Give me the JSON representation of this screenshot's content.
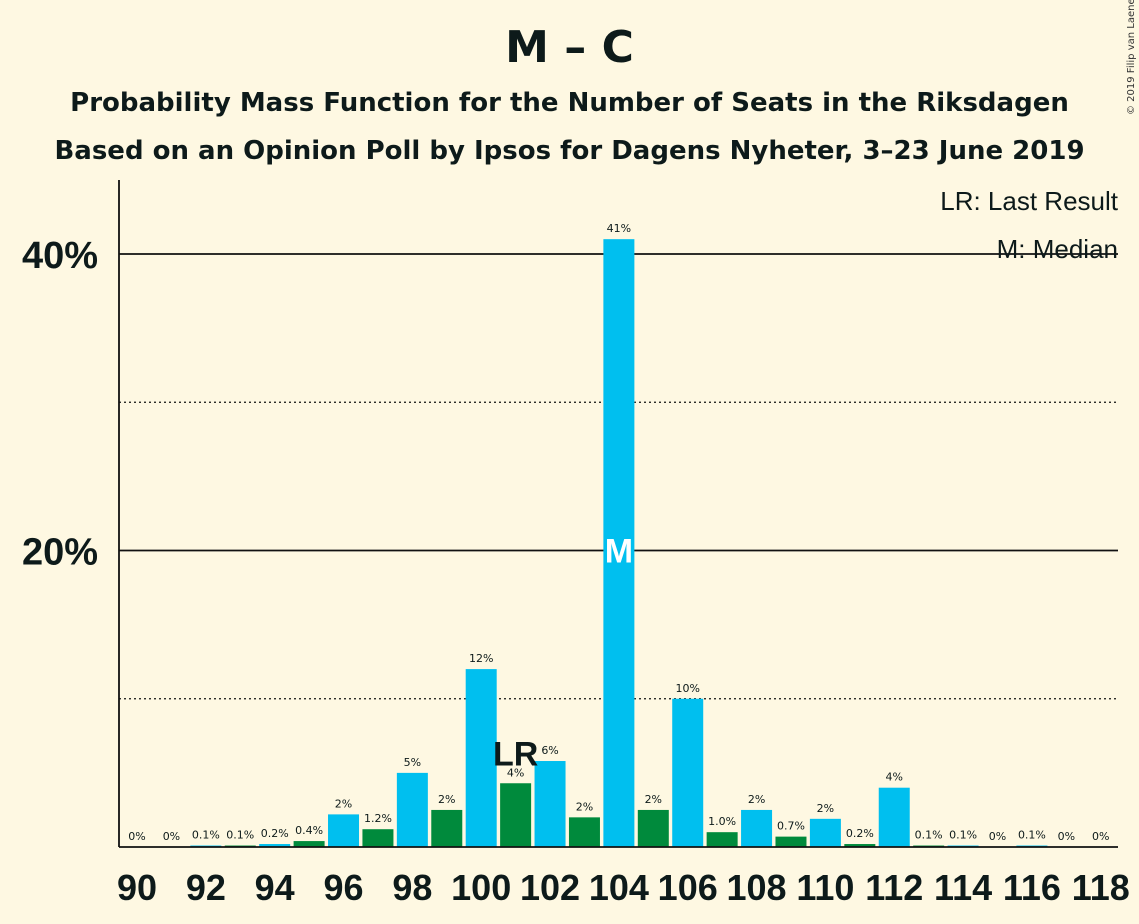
{
  "title": "M – C",
  "subtitle_1": "Probability Mass Function for the Number of Seats in the Riksdagen",
  "subtitle_2": "Based on an Opinion Poll by Ipsos for Dagens Nyheter, 3–23 June 2019",
  "copyright": "© 2019 Filip van Laenen",
  "legend": {
    "last_result": "LR: Last Result",
    "median": "M: Median"
  },
  "colors": {
    "background": "#fef8e2",
    "blue": "#00bfef",
    "green": "#008a3c"
  },
  "chart_data": {
    "type": "bar",
    "x": [
      90,
      91,
      92,
      93,
      94,
      95,
      96,
      97,
      98,
      99,
      100,
      101,
      102,
      103,
      104,
      105,
      106,
      107,
      108,
      109,
      110,
      111,
      112,
      113,
      114,
      115,
      116,
      117,
      118
    ],
    "values": [
      0,
      0,
      0.1,
      0.1,
      0.2,
      0.4,
      2.2,
      1.2,
      5,
      2.5,
      12,
      4.3,
      5.8,
      2,
      41,
      2.5,
      10,
      1.0,
      2.5,
      0.7,
      1.9,
      0.2,
      4,
      0.1,
      0.1,
      0,
      0.1,
      0,
      0
    ],
    "value_labels": [
      "0%",
      "0%",
      "0.1%",
      "0.1%",
      "0.2%",
      "0.4%",
      "2%",
      "1.2%",
      "5%",
      "2%",
      "12%",
      "4%",
      "6%",
      "2%",
      "41%",
      "2%",
      "10%",
      "1.0%",
      "2%",
      "0.7%",
      "2%",
      "0.2%",
      "4%",
      "0.1%",
      "0.1%",
      "0%",
      "0.1%",
      "0%",
      "0%"
    ],
    "x_tick_labels": [
      "90",
      "92",
      "94",
      "96",
      "98",
      "100",
      "102",
      "104",
      "106",
      "108",
      "110",
      "112",
      "114",
      "116",
      "118"
    ],
    "y_tick_labels": [
      "20%",
      "40%"
    ],
    "ylim": [
      0,
      45
    ],
    "grid": {
      "solid": [
        20,
        40
      ],
      "dotted": [
        10,
        30
      ]
    },
    "last_result_seat": 101,
    "last_result_marker": "LR",
    "median_seat": 104,
    "median_marker": "M",
    "legend_position": "top-right"
  }
}
